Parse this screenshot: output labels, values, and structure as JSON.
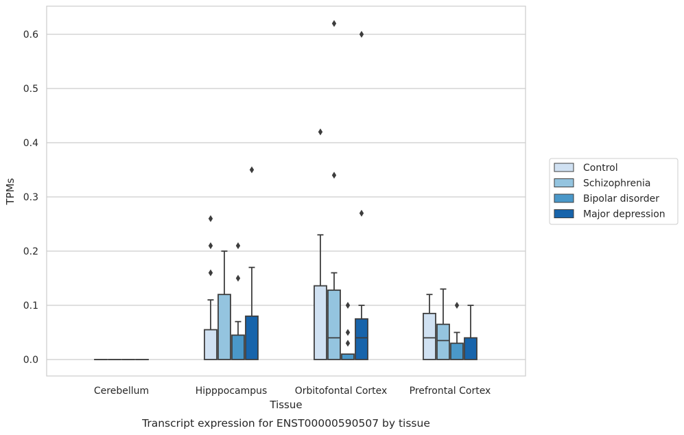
{
  "chart_data": {
    "type": "boxplot",
    "title": "",
    "caption": "Transcript expression for ENST00000590507 by tissue",
    "xlabel": "Tissue",
    "ylabel": "TPMs",
    "ylim": [
      -0.03,
      0.655
    ],
    "yticks": [
      0.0,
      0.1,
      0.2,
      0.3,
      0.4,
      0.5,
      0.6
    ],
    "ytick_labels": [
      "0.0",
      "0.1",
      "0.2",
      "0.3",
      "0.4",
      "0.5",
      "0.6"
    ],
    "grid": "horizontal",
    "legend_position": "right",
    "categories": [
      "Cerebellum",
      "Hipppocampus",
      "Orbitofontal Cortex",
      "Prefrontal Cortex"
    ],
    "series": [
      {
        "name": "Control",
        "color": "#d0e1f2",
        "boxes": [
          {
            "q1": 0,
            "median": 0,
            "q3": 0,
            "whisker_low": 0,
            "whisker_high": 0,
            "outliers": []
          },
          {
            "q1": 0,
            "median": 0,
            "q3": 0.055,
            "whisker_low": 0,
            "whisker_high": 0.11,
            "outliers": [
              0.16,
              0.21,
              0.26
            ]
          },
          {
            "q1": 0,
            "median": 0,
            "q3": 0.136,
            "whisker_low": 0,
            "whisker_high": 0.23,
            "outliers": [
              0.42
            ]
          },
          {
            "q1": 0,
            "median": 0.04,
            "q3": 0.085,
            "whisker_low": 0,
            "whisker_high": 0.12,
            "outliers": []
          }
        ]
      },
      {
        "name": "Schizophrenia",
        "color": "#94c4df",
        "boxes": [
          {
            "q1": 0,
            "median": 0,
            "q3": 0,
            "whisker_low": 0,
            "whisker_high": 0,
            "outliers": []
          },
          {
            "q1": 0,
            "median": 0,
            "q3": 0.12,
            "whisker_low": 0,
            "whisker_high": 0.2,
            "outliers": []
          },
          {
            "q1": 0,
            "median": 0.04,
            "q3": 0.128,
            "whisker_low": 0,
            "whisker_high": 0.16,
            "outliers": [
              0.34,
              0.62
            ]
          },
          {
            "q1": 0,
            "median": 0.035,
            "q3": 0.065,
            "whisker_low": 0,
            "whisker_high": 0.13,
            "outliers": []
          }
        ]
      },
      {
        "name": "Bipolar disorder",
        "color": "#4a98c9",
        "boxes": [
          {
            "q1": 0,
            "median": 0,
            "q3": 0,
            "whisker_low": 0,
            "whisker_high": 0,
            "outliers": []
          },
          {
            "q1": 0,
            "median": 0,
            "q3": 0.045,
            "whisker_low": 0,
            "whisker_high": 0.07,
            "outliers": [
              0.15,
              0.21
            ]
          },
          {
            "q1": 0,
            "median": 0,
            "q3": 0.01,
            "whisker_low": 0,
            "whisker_high": 0.01,
            "outliers": [
              0.03,
              0.05,
              0.1
            ]
          },
          {
            "q1": 0,
            "median": 0,
            "q3": 0.03,
            "whisker_low": 0,
            "whisker_high": 0.05,
            "outliers": [
              0.1
            ]
          }
        ]
      },
      {
        "name": "Major depression",
        "color": "#1764ab",
        "boxes": [
          {
            "q1": 0,
            "median": 0,
            "q3": 0,
            "whisker_low": 0,
            "whisker_high": 0,
            "outliers": []
          },
          {
            "q1": 0,
            "median": 0,
            "q3": 0.08,
            "whisker_low": 0,
            "whisker_high": 0.17,
            "outliers": [
              0.35
            ]
          },
          {
            "q1": 0,
            "median": 0.04,
            "q3": 0.075,
            "whisker_low": 0,
            "whisker_high": 0.1,
            "outliers": [
              0.27,
              0.6
            ]
          },
          {
            "q1": 0,
            "median": 0,
            "q3": 0.04,
            "whisker_low": 0,
            "whisker_high": 0.1,
            "outliers": []
          }
        ]
      }
    ]
  }
}
